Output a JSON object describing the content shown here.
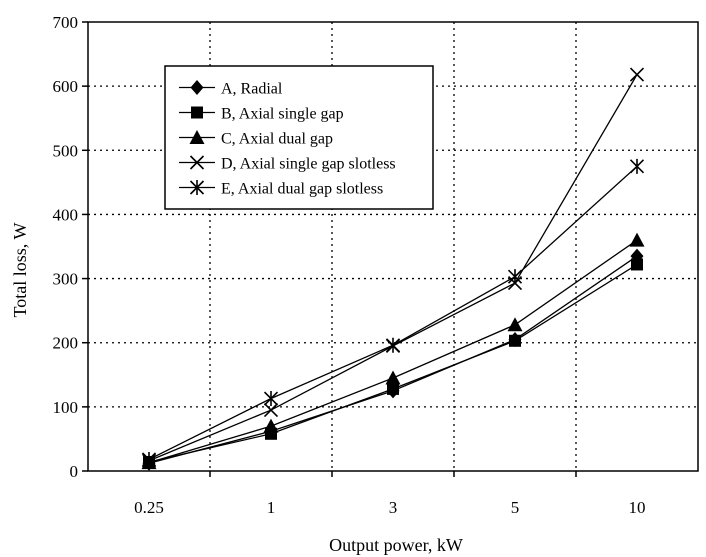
{
  "chart_data": {
    "type": "line",
    "title": "",
    "xlabel": "Output power, kW",
    "ylabel": "Total loss, W",
    "categories": [
      "0.25",
      "1",
      "3",
      "5",
      "10"
    ],
    "ylim": [
      0,
      700
    ],
    "yticks": [
      0,
      100,
      200,
      300,
      400,
      500,
      600,
      700
    ],
    "grid": true,
    "grid_style": "dotted",
    "legend_position": "top-left",
    "series": [
      {
        "name": "A, Radial",
        "marker": "diamond",
        "values": [
          12,
          62,
          125,
          205,
          335
        ]
      },
      {
        "name": "B, Axial single gap",
        "marker": "square",
        "values": [
          14,
          58,
          128,
          203,
          322
        ]
      },
      {
        "name": "C, Axial dual gap",
        "marker": "triangle",
        "values": [
          13,
          70,
          145,
          228,
          360
        ]
      },
      {
        "name": "D, Axial single gap slotless",
        "marker": "x",
        "values": [
          16,
          95,
          195,
          293,
          618
        ]
      },
      {
        "name": "E, Axial dual gap slotless",
        "marker": "asterisk",
        "values": [
          18,
          113,
          196,
          303,
          475
        ]
      }
    ]
  }
}
